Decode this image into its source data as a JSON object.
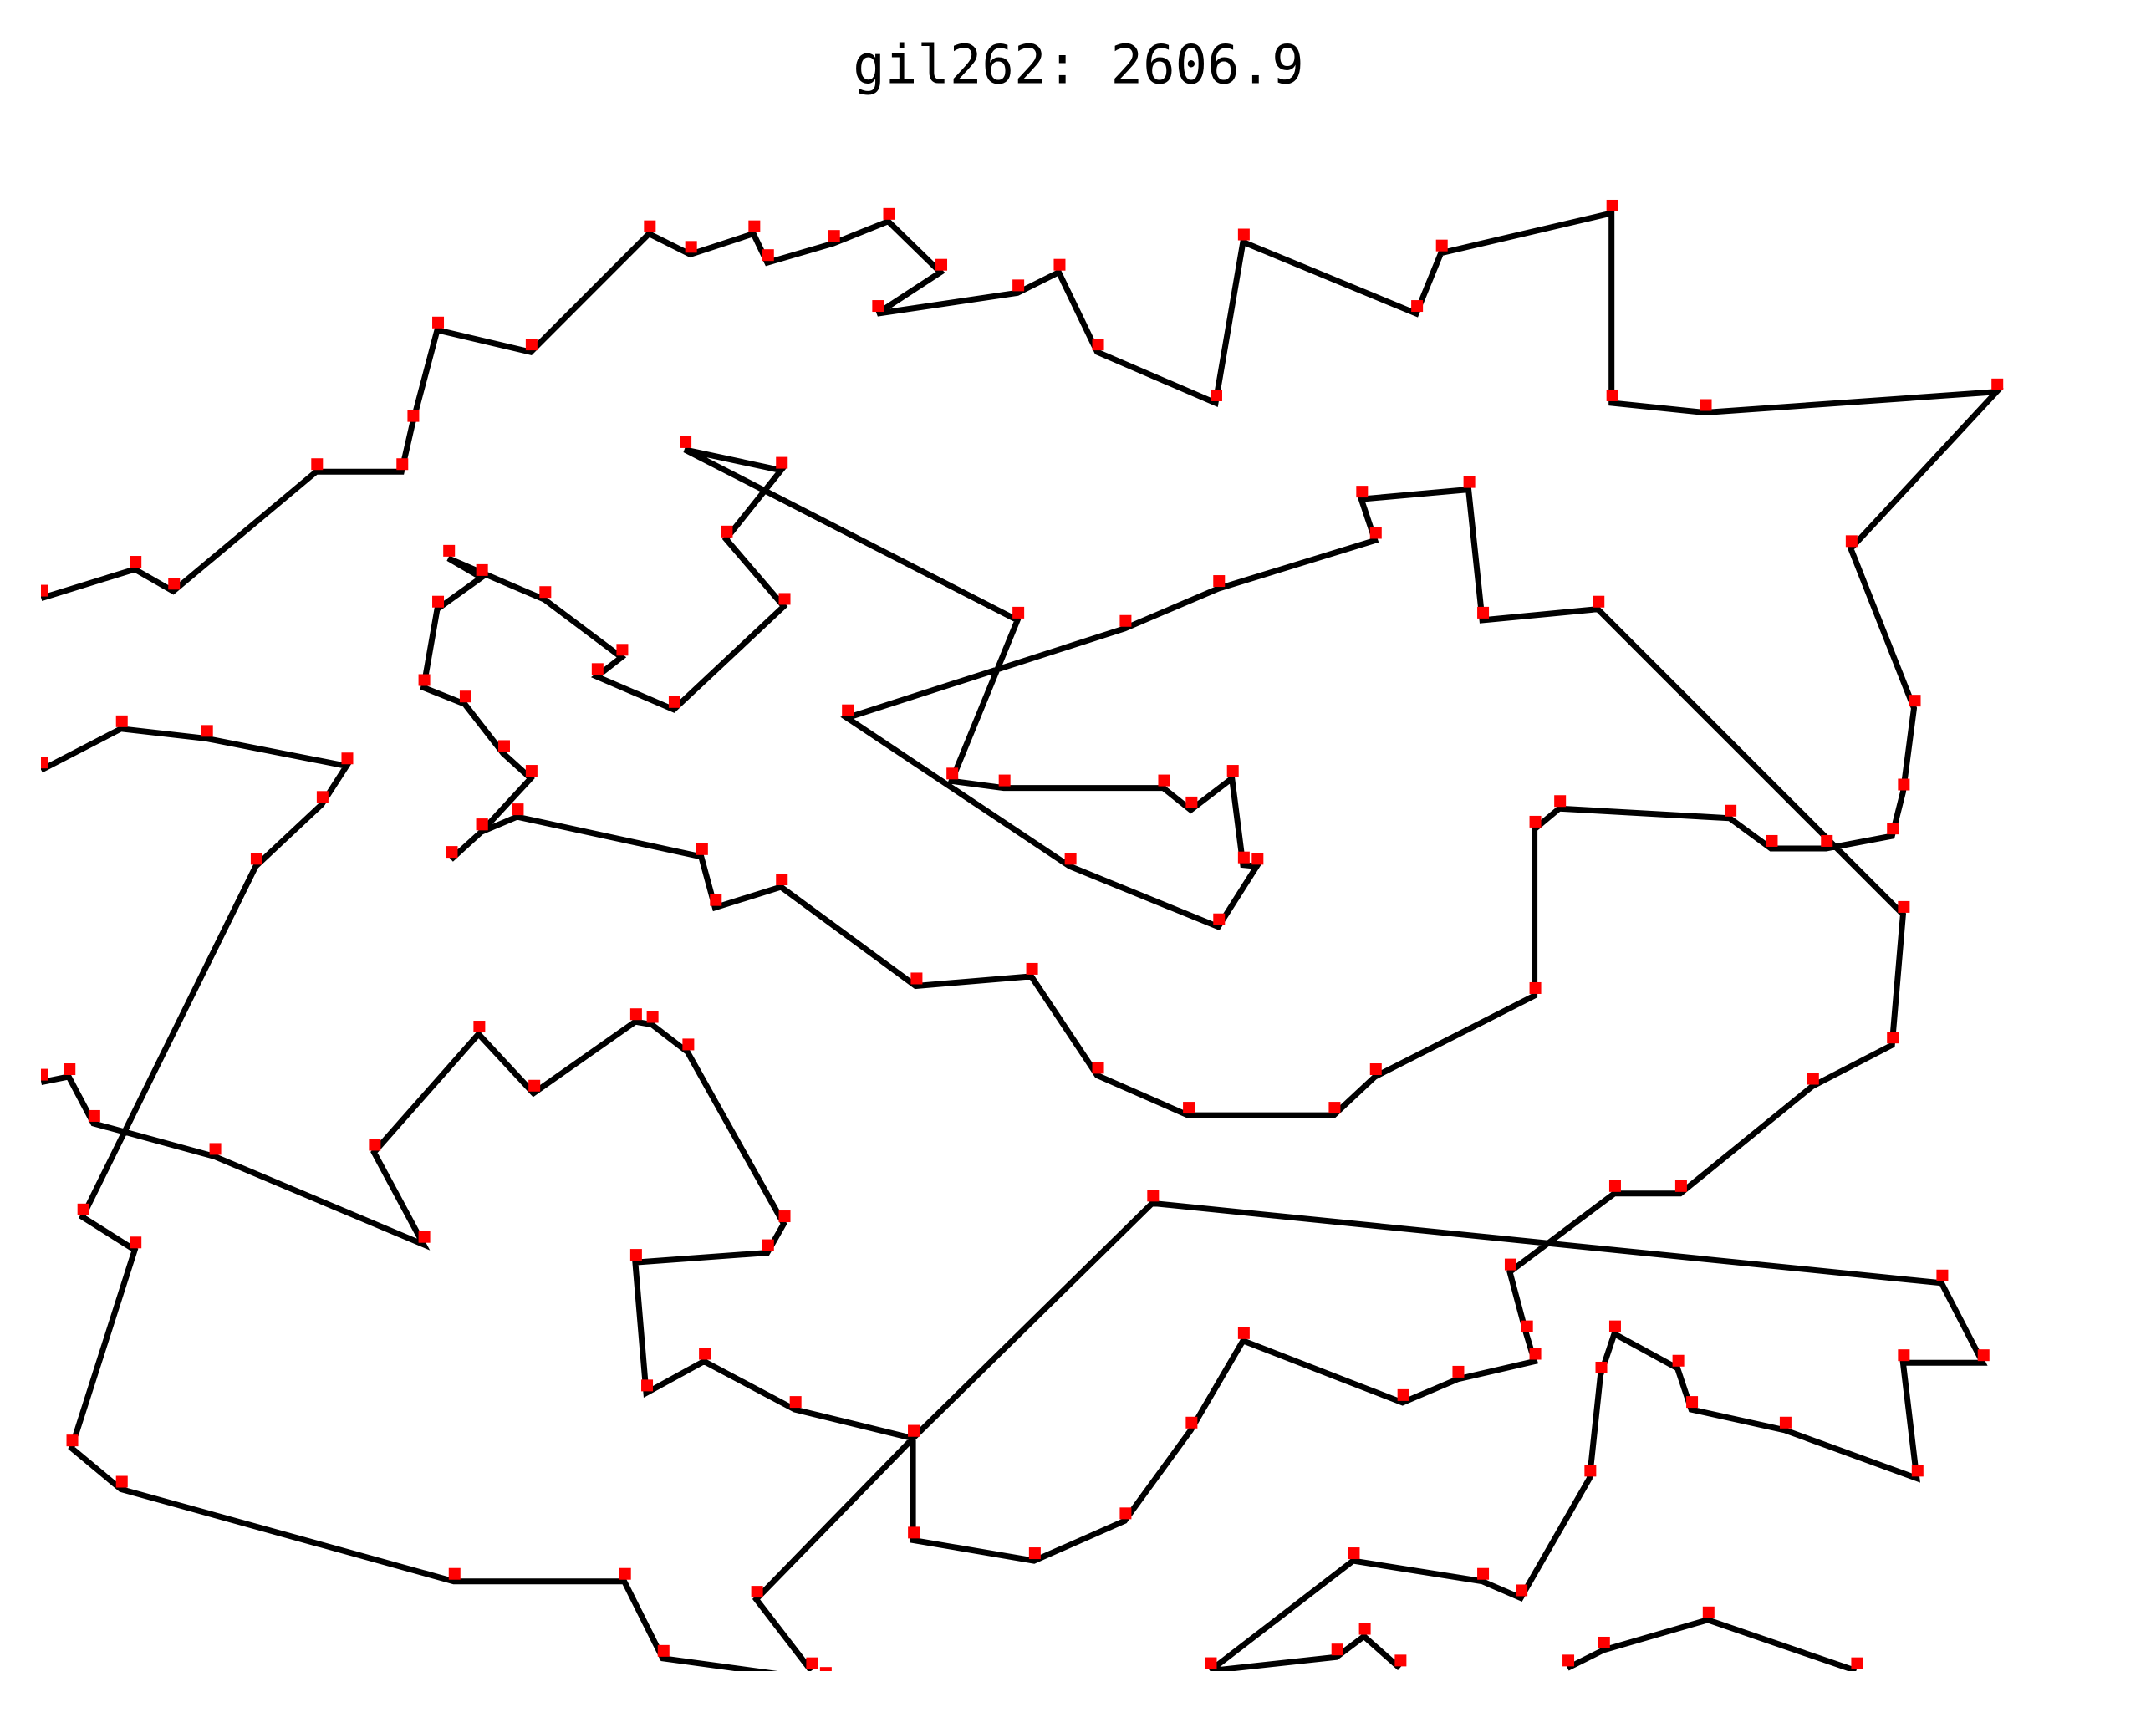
{
  "chart_data": {
    "type": "line",
    "title": "gil262: 2606.9",
    "x": [
      30,
      98,
      126,
      230,
      292,
      300,
      318,
      386,
      472,
      502,
      548,
      558,
      606,
      646,
      684,
      638,
      740,
      770,
      798,
      884,
      904,
      1030,
      1048,
      1172,
      1172,
      1240,
      1452,
      1346,
      1392,
      1384,
      1376,
      1328,
      1288,
      1258,
      1134,
      1116,
      1116,
      1000,
      970,
      864,
      798,
      750,
      666,
      568,
      520,
      510,
      376,
      350,
      328,
      350,
      386,
      366,
      338,
      308,
      318,
      350,
      326,
      396,
      452,
      434,
      490,
      570,
      528,
      568,
      498,
      740,
      692,
      730,
      846,
      866,
      896,
      904,
      914,
      886,
      778,
      616,
      818,
      886,
      1000,
      990,
      1068,
      1078,
      1162,
      1384,
      1376,
      1318,
      1222,
      1174,
      1098,
      1110,
      1116,
      1060,
      1020,
      904,
      866,
      818,
      752,
      664,
      664,
      578,
      512,
      470,
      462,
      558,
      570,
      500,
      474,
      462,
      388,
      348,
      272,
      308,
      156,
      68,
      50,
      30,
      null,
      30,
      88,
      150,
      252,
      234,
      186,
      60,
      98,
      52,
      88,
      330,
      454,
      482,
      600,
      null,
      590,
      550,
      664,
      838,
      1412,
      1442,
      1384,
      1394,
      1298,
      1230,
      1220,
      1174,
      1164,
      1156,
      1106,
      1078,
      984,
      880,
      null,
      880,
      972,
      992,
      1018,
      null,
      1140,
      1166,
      1242,
      1350
    ],
    "series": [
      {
        "color": "#000000",
        "marker_color": "#ff0000",
        "values": [
          435,
          414,
          430,
          343,
          343,
          308,
          240,
          256,
          170,
          185,
          170,
          191,
          177,
          161,
          198,
          228,
          213,
          198,
          256,
          293,
          176,
          228,
          184,
          155,
          293,
          300,
          285,
          399,
          515,
          576,
          608,
          617,
          617,
          595,
          588,
          603,
          724,
          783,
          811,
          811,
          782,
          710,
          717,
          645,
          660,
          623,
          594,
          605,
          625,
          605,
          566,
          548,
          512,
          500,
          443,
          420,
          406,
          436,
          478,
          492,
          516,
          441,
          392,
          342,
          327,
          451,
          568,
          573,
          573,
          589,
          566,
          629,
          630,
          674,
          630,
          522,
          457,
          428,
          393,
          363,
          356,
          451,
          443,
          665,
          760,
          790,
          868,
          868,
          925,
          970,
          990,
          1003,
          1020,
          975,
          1040,
          1106,
          1135,
          1120,
          1046,
          1025,
          990,
          1013,
          918,
          911,
          890,
          765,
          745,
          743,
          795,
          752,
          838,
          905,
          841,
          817,
          783,
          787,
          null,
          560,
          530,
          537,
          557,
          585,
          630,
          885,
          909,
          1053,
          1083,
          1150,
          1150,
          1206,
          1222,
          null,
          1215,
          1163,
          1046,
          875,
          933,
          991,
          991,
          1075,
          1040,
          1025,
          995,
          970,
          1000,
          1075,
          1162,
          1150,
          1135,
          1215,
          null,
          1215,
          1205,
          1190,
          1213,
          null,
          1213,
          1200,
          1178,
          1215
        ]
      }
    ],
    "xlim": [
      0,
      1568
    ],
    "ylim": [
      1245,
      0
    ],
    "markers": true
  }
}
